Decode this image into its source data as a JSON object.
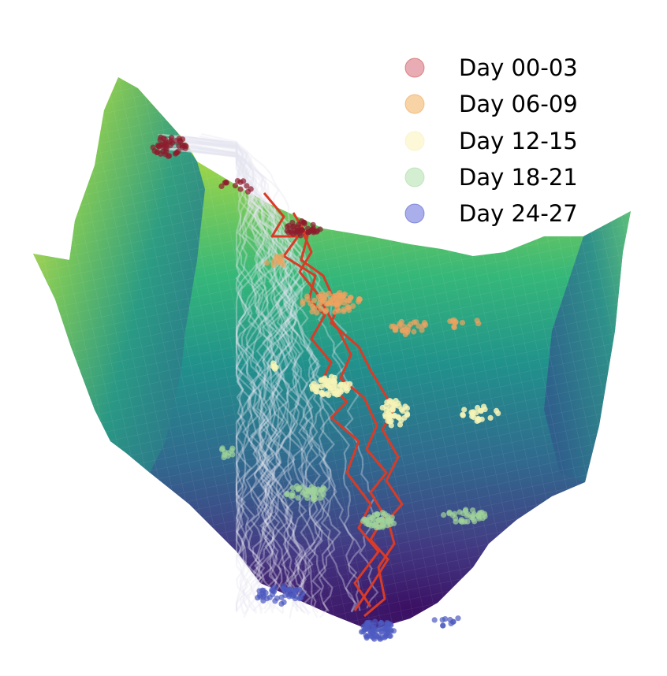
{
  "chart_data": {
    "type": "scatter",
    "title": "",
    "xlabel": "",
    "ylabel": "",
    "axes_visible": false,
    "grid": false,
    "legend_position": "top-right",
    "description_kind": "3D surface landscape with trajectories and clustered scatter points",
    "surface_colormap": [
      "#440154",
      "#3b528b",
      "#21918c",
      "#5ec962",
      "#fde725"
    ],
    "trajectory_colors": {
      "many": "#e4e4f2",
      "highlighted": "#d93b26"
    },
    "series": [
      {
        "name": "Day 00-03",
        "color": "#d45a6a",
        "marker_color": "#8e1b2c"
      },
      {
        "name": "Day 06-09",
        "color": "#f2b66a",
        "marker_color": "#f0a35f"
      },
      {
        "name": "Day 12-15",
        "color": "#fdf8d4",
        "marker_color": "#f6f3b6"
      },
      {
        "name": "Day 18-21",
        "color": "#b8e2b3",
        "marker_color": "#9fd39a"
      },
      {
        "name": "Day 24-27",
        "color": "#5560d8",
        "marker_color": "#4d5ac0"
      }
    ]
  }
}
